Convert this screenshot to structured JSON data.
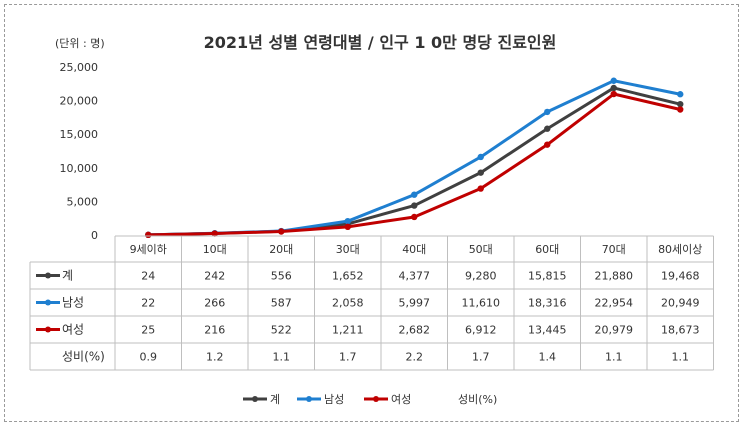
{
  "chart_data": {
    "type": "line",
    "title": "2021년 성별 연령대별 / 인구 1 0만 명당 진료인원",
    "unit_label": "(단위 : 명)",
    "ylim": [
      0,
      25000
    ],
    "yticks": [
      "25,000",
      "20,000",
      "15,000",
      "10,000",
      "5,000",
      "0"
    ],
    "ytick_values": [
      25000,
      20000,
      15000,
      10000,
      5000,
      0
    ],
    "categories": [
      "9세이하",
      "10대",
      "20대",
      "30대",
      "40대",
      "50대",
      "60대",
      "70대",
      "80세이상"
    ],
    "series": [
      {
        "name": "계",
        "color": "#404040",
        "values": [
          24,
          242,
          556,
          1652,
          4377,
          9280,
          15815,
          21880,
          19468
        ],
        "labels": [
          "24",
          "242",
          "556",
          "1,652",
          "4,377",
          "9,280",
          "15,815",
          "21,880",
          "19,468"
        ]
      },
      {
        "name": "남성",
        "color": "#1f7fd0",
        "values": [
          22,
          266,
          587,
          2058,
          5997,
          11610,
          18316,
          22954,
          20949
        ],
        "labels": [
          "22",
          "266",
          "587",
          "2,058",
          "5,997",
          "11,610",
          "18,316",
          "22,954",
          "20,949"
        ]
      },
      {
        "name": "여성",
        "color": "#c00000",
        "values": [
          25,
          216,
          522,
          1211,
          2682,
          6912,
          13445,
          20979,
          18673
        ],
        "labels": [
          "25",
          "216",
          "522",
          "1,211",
          "2,682",
          "6,912",
          "13,445",
          "20,979",
          "18,673"
        ]
      }
    ],
    "ratio_row": {
      "name": "성비(%)",
      "labels": [
        "0.9",
        "1.2",
        "1.1",
        "1.7",
        "2.2",
        "1.7",
        "1.4",
        "1.1",
        "1.1"
      ]
    },
    "legend_extra": "성비(%)",
    "legend_position": "bottom",
    "grid": false
  }
}
